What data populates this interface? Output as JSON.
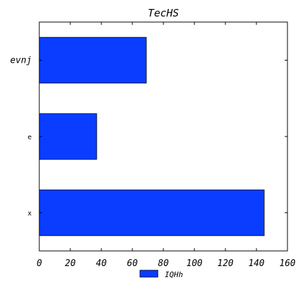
{
  "chart_data": {
    "type": "bar",
    "orientation": "horizontal",
    "title": "TecHS",
    "xlabel": "",
    "ylabel": "",
    "categories": [
      "x",
      "e",
      "evnj"
    ],
    "series": [
      {
        "name": "IQHh",
        "values": [
          145,
          37,
          69
        ],
        "color": "#0a3dff"
      }
    ],
    "xlim": [
      0,
      160
    ],
    "xticks": [
      0,
      20,
      40,
      60,
      80,
      100,
      120,
      140,
      160
    ],
    "grid": false,
    "legend": {
      "position": "bottom-center"
    }
  }
}
